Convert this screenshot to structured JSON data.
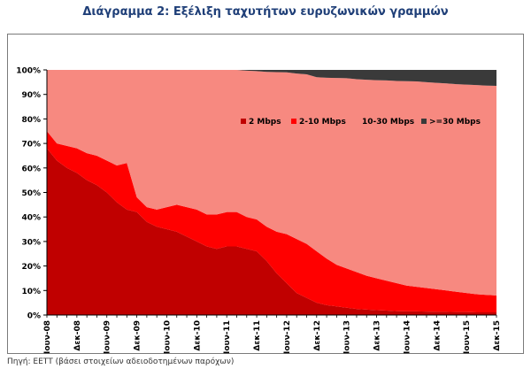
{
  "page": {
    "title": "Διάγραμμα 2: Εξέλιξη ταχυτήτων ευρυζωνικών γραμμών",
    "source": "Πηγή: ΕΕΤΤ (βάσει στοιχείων αδειοδοτημένων παρόχων)"
  },
  "chart_data": {
    "type": "area",
    "stacked": true,
    "x": [
      "Ιουν-08",
      "",
      "",
      "Δεκ-08",
      "",
      "",
      "Ιουν-09",
      "",
      "",
      "Δεκ-09",
      "",
      "",
      "Ιουν-10",
      "",
      "",
      "Δεκ-10",
      "",
      "",
      "Ιουν-11",
      "",
      "",
      "Δεκ-11",
      "",
      "",
      "Ιουν-12",
      "",
      "",
      "Δεκ-12",
      "",
      "",
      "Ιουν-13",
      "",
      "",
      "Δεκ-13",
      "",
      "",
      "Ιουν-14",
      "",
      "",
      "Δεκ-14",
      "",
      "",
      "Ιουν-15",
      "",
      "",
      "Δεκ-15"
    ],
    "xtick_labels": [
      "Ιουν-08",
      "Δεκ-08",
      "Ιουν-09",
      "Δεκ-09",
      "Ιουν-10",
      "Δεκ-10",
      "Ιουν-11",
      "Δεκ-11",
      "Ιουν-12",
      "Δεκ-12",
      "Ιουν-13",
      "Δεκ-13",
      "Ιουν-14",
      "Δεκ-14",
      "Ιουν-15",
      "Δεκ-15"
    ],
    "yticks": [
      "0%",
      "10%",
      "20%",
      "30%",
      "40%",
      "50%",
      "60%",
      "70%",
      "80%",
      "90%",
      "100%"
    ],
    "ylim": [
      0,
      100
    ],
    "grid": false,
    "legend_position": "inside-top-right",
    "series": [
      {
        "name": "2 Mbps",
        "color": "#c00000",
        "values": [
          68,
          63,
          60,
          58,
          55,
          53,
          50,
          46,
          43,
          42,
          38,
          36,
          35,
          34,
          32,
          30,
          28,
          27,
          28,
          28,
          27,
          26,
          22,
          17,
          13,
          9,
          7,
          5,
          4,
          3.5,
          3,
          2.5,
          2.2,
          2,
          1.8,
          1.6,
          1.5,
          1.5,
          1.4,
          1.3,
          1.3,
          1.2,
          1.2,
          1.1,
          1.1,
          1.1
        ]
      },
      {
        "name": "2-10 Mbps",
        "color": "#ff0000",
        "values": [
          7,
          7,
          9,
          10,
          11,
          12,
          13,
          15,
          19,
          6,
          6,
          7,
          9,
          11,
          12,
          13,
          13,
          14,
          14,
          14,
          13,
          13,
          14,
          17,
          20,
          22,
          22,
          21,
          19,
          17,
          16,
          15,
          13.8,
          13,
          12.2,
          11.4,
          10.5,
          10,
          9.6,
          9.2,
          8.7,
          8.3,
          7.8,
          7.4,
          7.1,
          6.9
        ]
      },
      {
        "name": "10-30 Mbps",
        "color": "#f78980",
        "values": [
          25,
          30,
          31,
          32,
          34,
          35,
          37,
          39,
          38,
          52,
          56,
          57,
          56,
          55,
          56,
          57,
          59,
          59,
          58,
          58,
          59.7,
          60.5,
          63.2,
          65.1,
          66,
          67.5,
          69.2,
          71,
          73.8,
          76.2,
          77.6,
          78.7,
          80,
          80.8,
          81.7,
          82.5,
          83.4,
          83.8,
          84,
          84.2,
          84.5,
          84.7,
          85,
          85.3,
          85.4,
          85.5
        ]
      },
      {
        "name": ">=30 Mbps",
        "color": "#3a3a3a",
        "values": [
          0,
          0,
          0,
          0,
          0,
          0,
          0,
          0,
          0,
          0,
          0,
          0,
          0,
          0,
          0,
          0,
          0,
          0,
          0,
          0,
          0.3,
          0.5,
          0.8,
          0.9,
          1,
          1.5,
          1.8,
          3,
          3.2,
          3.3,
          3.4,
          3.8,
          4,
          4.2,
          4.3,
          4.5,
          4.6,
          4.7,
          5,
          5.3,
          5.5,
          5.8,
          6,
          6.2,
          6.4,
          6.5
        ]
      }
    ]
  }
}
